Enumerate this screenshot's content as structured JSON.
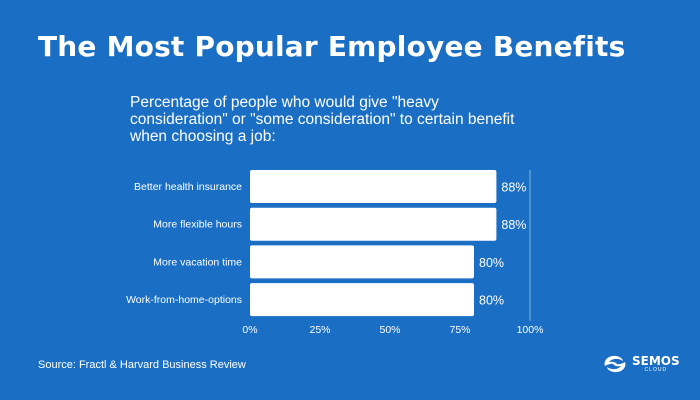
{
  "title": "The Most Popular Employee Benefits",
  "subtitle": "Percentage of people who would give \"heavy consideration\" or \"some consideration\" to certain benefit when choosing a job:",
  "source": "Source: Fractl & Harvard Business Review",
  "logo": {
    "name": "SEMOS",
    "sub": "CLOUD"
  },
  "colors": {
    "background": "#1a6fc4",
    "bar": "#ffffff",
    "text": "#ffffff",
    "gridline": "#7fb0e0"
  },
  "chart_data": {
    "type": "bar",
    "orientation": "horizontal",
    "categories": [
      "Better health insurance",
      "More flexible hours",
      "More vacation time",
      "Work-from-home-options"
    ],
    "values": [
      88,
      88,
      80,
      80
    ],
    "value_labels": [
      "88%",
      "88%",
      "80%",
      "80%"
    ],
    "xlim": [
      0,
      100
    ],
    "xticks": [
      0,
      25,
      50,
      75,
      100
    ],
    "xtick_labels": [
      "0%",
      "25%",
      "50%",
      "75%",
      "100%"
    ],
    "grid": false
  }
}
